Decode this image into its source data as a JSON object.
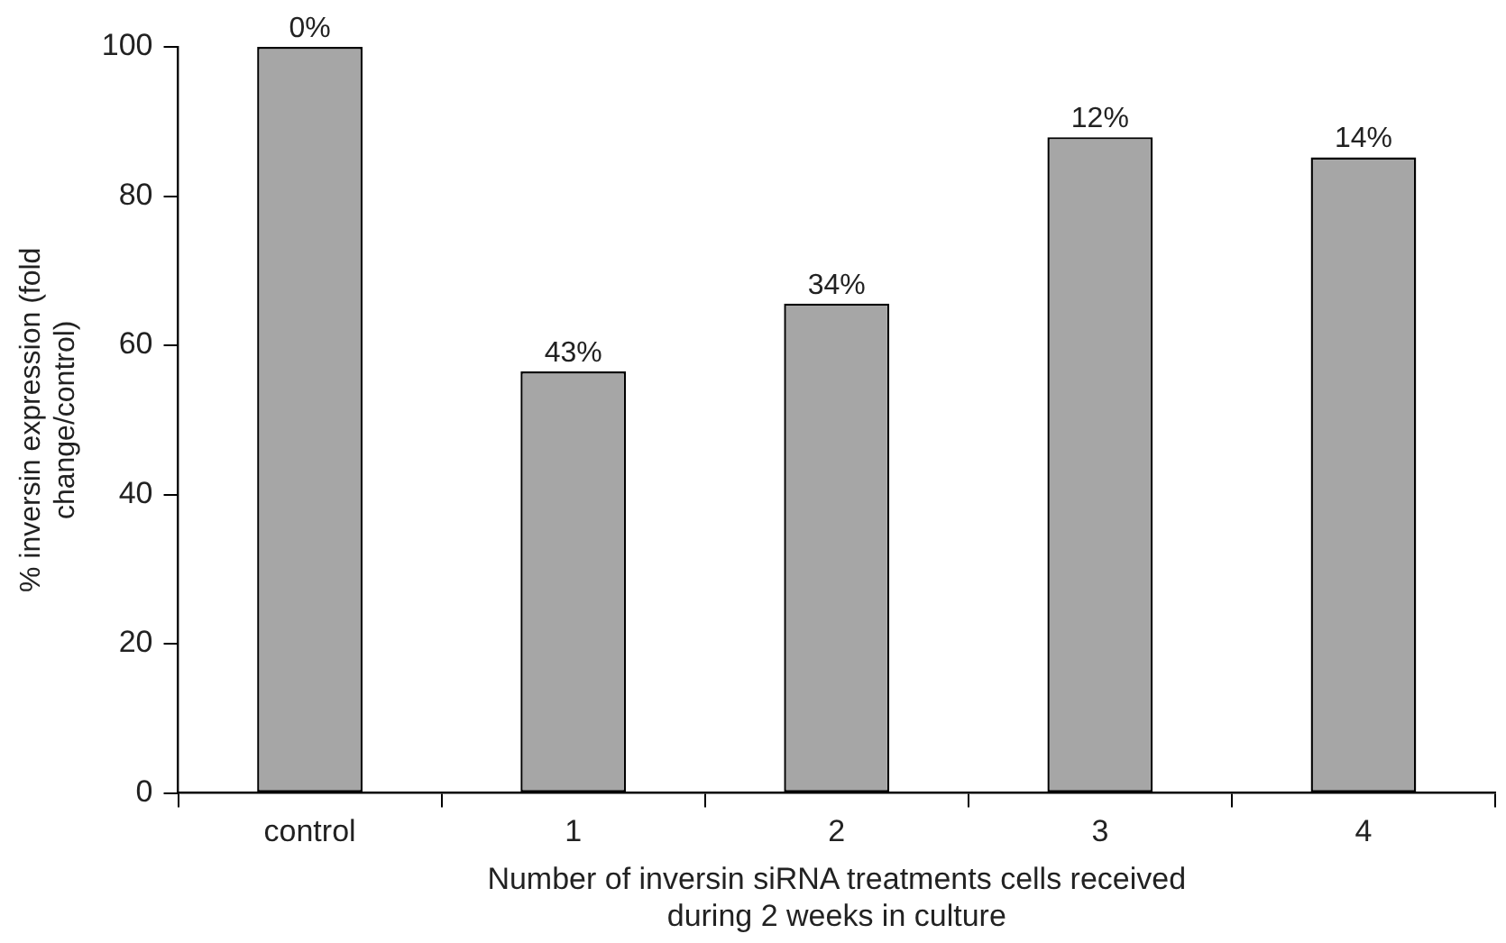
{
  "chart_data": {
    "type": "bar",
    "xlabel": "Number of inversin siRNA treatments cells received\nduring 2 weeks in culture",
    "ylabel": "% inversin expression (fold\nchange/control)",
    "categories": [
      "control",
      "1",
      "2",
      "3",
      "4"
    ],
    "values": [
      100,
      56.5,
      65.6,
      87.9,
      85.2
    ],
    "annotations": [
      {
        "text": "0%",
        "x": "control",
        "y": 100
      },
      {
        "text": "43%",
        "x": "1",
        "y": 56.5
      },
      {
        "text": "34%",
        "x": "2",
        "y": 65.6
      },
      {
        "text": "12%",
        "x": "3",
        "y": 87.9
      },
      {
        "text": "14%",
        "x": "4",
        "y": 85.2
      }
    ],
    "color": "#a6a6a6",
    "ylim": [
      0,
      100
    ],
    "yticks": [
      0,
      20,
      40,
      60,
      80,
      100
    ],
    "grid": false,
    "legend": false
  }
}
